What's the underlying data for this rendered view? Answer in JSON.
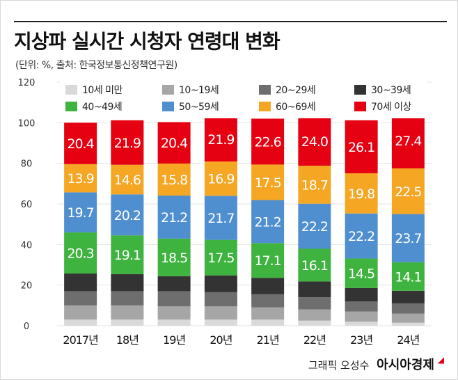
{
  "header": {
    "title": "지상파 실시간 시청자 연령대 변화",
    "subtitle": "(단위: %, 출처: 한국정보통신정책연구원)"
  },
  "footer": {
    "credit": "그래픽 오성수",
    "brand": "아시아경제"
  },
  "chart_data": {
    "type": "bar",
    "stacked": true,
    "categories": [
      "2017년",
      "18년",
      "19년",
      "20년",
      "21년",
      "22년",
      "23년",
      "24년"
    ],
    "ylim": [
      0,
      120
    ],
    "yticks": [
      0,
      20,
      40,
      60,
      80,
      100,
      120
    ],
    "grid": true,
    "legend_position": "top",
    "series": [
      {
        "name": "10세 미만",
        "color": "#d9d9d9",
        "values": [
          3,
          3,
          3,
          3,
          3,
          2.5,
          2,
          1.5
        ],
        "labeled": false
      },
      {
        "name": "10~19세",
        "color": "#a6a6a6",
        "values": [
          7,
          7,
          6.5,
          6.5,
          6,
          5.5,
          5,
          4.5
        ],
        "labeled": false
      },
      {
        "name": "20~29세",
        "color": "#6e6e6e",
        "values": [
          7,
          7,
          7.5,
          7,
          6.5,
          6,
          5,
          5
        ],
        "labeled": false
      },
      {
        "name": "30~39세",
        "color": "#333333",
        "values": [
          8.7,
          8.4,
          7.4,
          8.3,
          8.1,
          7.8,
          6.6,
          6.2
        ],
        "labeled": false
      },
      {
        "name": "40~49세",
        "color": "#3fb33f",
        "values": [
          20.3,
          19.1,
          18.5,
          17.5,
          17.1,
          16.1,
          14.5,
          14.1
        ],
        "labeled": true
      },
      {
        "name": "50~59세",
        "color": "#4f8fd0",
        "values": [
          19.7,
          20.2,
          21.2,
          21.7,
          21.2,
          22.2,
          22.2,
          23.7
        ],
        "labeled": true
      },
      {
        "name": "60~69세",
        "color": "#f5a623",
        "values": [
          13.9,
          14.6,
          15.8,
          16.9,
          17.5,
          18.7,
          19.8,
          22.5
        ],
        "labeled": true
      },
      {
        "name": "70세 이상",
        "color": "#e50012",
        "values": [
          20.4,
          21.9,
          20.4,
          21.9,
          22.6,
          24.0,
          26.1,
          27.4
        ],
        "labeled": true
      }
    ]
  }
}
